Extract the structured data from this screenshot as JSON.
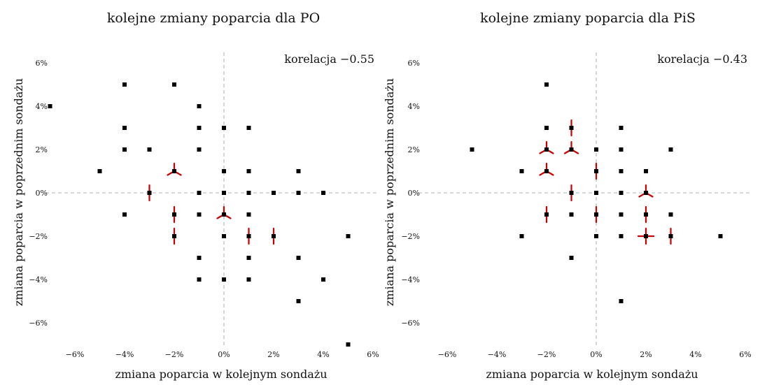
{
  "chart_data": [
    {
      "type": "scatter",
      "title": "kolejne zmiany poparcia dla PO",
      "xlabel": "zmiana poparcia w kolejnym sondażu",
      "ylabel": "zmiana poparcia w poprzednim sondażu",
      "annotation": "korelacja −0.55",
      "xlim": [
        -7,
        6
      ],
      "ylim": [
        -7,
        6
      ],
      "xticks": [
        "−6%",
        "−4%",
        "−2%",
        "0%",
        "2%",
        "4%",
        "6%"
      ],
      "yticks": [
        "−6%",
        "−4%",
        "−2%",
        "0%",
        "2%",
        "4%",
        "6%"
      ],
      "tick_values": [
        -6,
        -4,
        -2,
        0,
        2,
        4,
        6
      ],
      "reference_lines": {
        "x": 0,
        "y": 0
      },
      "marker_color": "#000000",
      "sunflower_color": "#cc0000",
      "points": [
        {
          "x": -7,
          "y": 4,
          "n": 1
        },
        {
          "x": -5,
          "y": 1,
          "n": 1
        },
        {
          "x": -4,
          "y": 5,
          "n": 1
        },
        {
          "x": -4,
          "y": 3,
          "n": 1
        },
        {
          "x": -4,
          "y": 2,
          "n": 1
        },
        {
          "x": -4,
          "y": -1,
          "n": 1
        },
        {
          "x": -3,
          "y": 2,
          "n": 1
        },
        {
          "x": -3,
          "y": 0,
          "n": 2
        },
        {
          "x": -2,
          "y": 5,
          "n": 1
        },
        {
          "x": -2,
          "y": 1,
          "n": 3
        },
        {
          "x": -2,
          "y": -1,
          "n": 2
        },
        {
          "x": -2,
          "y": -2,
          "n": 2
        },
        {
          "x": -1,
          "y": 4,
          "n": 1
        },
        {
          "x": -1,
          "y": 3,
          "n": 1
        },
        {
          "x": -1,
          "y": 2,
          "n": 1
        },
        {
          "x": -1,
          "y": 0,
          "n": 1
        },
        {
          "x": -1,
          "y": -1,
          "n": 1
        },
        {
          "x": -1,
          "y": -3,
          "n": 1
        },
        {
          "x": -1,
          "y": -4,
          "n": 1
        },
        {
          "x": 0,
          "y": 3,
          "n": 1
        },
        {
          "x": 0,
          "y": 1,
          "n": 1
        },
        {
          "x": 0,
          "y": 0,
          "n": 1
        },
        {
          "x": 0,
          "y": -1,
          "n": 3
        },
        {
          "x": 0,
          "y": -2,
          "n": 1
        },
        {
          "x": 0,
          "y": -4,
          "n": 1
        },
        {
          "x": 1,
          "y": 3,
          "n": 1
        },
        {
          "x": 1,
          "y": 1,
          "n": 1
        },
        {
          "x": 1,
          "y": 0,
          "n": 1
        },
        {
          "x": 1,
          "y": -1,
          "n": 1
        },
        {
          "x": 1,
          "y": -2,
          "n": 2
        },
        {
          "x": 1,
          "y": -3,
          "n": 1
        },
        {
          "x": 1,
          "y": -4,
          "n": 1
        },
        {
          "x": 2,
          "y": 0,
          "n": 1
        },
        {
          "x": 2,
          "y": -2,
          "n": 2
        },
        {
          "x": 3,
          "y": 1,
          "n": 1
        },
        {
          "x": 3,
          "y": 0,
          "n": 1
        },
        {
          "x": 3,
          "y": -3,
          "n": 1
        },
        {
          "x": 3,
          "y": -5,
          "n": 1
        },
        {
          "x": 4,
          "y": 0,
          "n": 1
        },
        {
          "x": 4,
          "y": -4,
          "n": 1
        },
        {
          "x": 5,
          "y": -2,
          "n": 1
        },
        {
          "x": 5,
          "y": -7,
          "n": 1
        }
      ]
    },
    {
      "type": "scatter",
      "title": "kolejne zmiany poparcia dla PiS",
      "xlabel": "zmiana poparcia w kolejnym sondażu",
      "ylabel": "zmiana poparcia w poprzednim sondażu",
      "annotation": "korelacja −0.43",
      "xlim": [
        -7,
        6
      ],
      "ylim": [
        -7,
        6
      ],
      "xticks": [
        "−6%",
        "−4%",
        "−2%",
        "0%",
        "2%",
        "4%",
        "6%"
      ],
      "yticks": [
        "−6%",
        "−4%",
        "−2%",
        "0%",
        "2%",
        "4%",
        "6%"
      ],
      "tick_values": [
        -6,
        -4,
        -2,
        0,
        2,
        4,
        6
      ],
      "reference_lines": {
        "x": 0,
        "y": 0
      },
      "marker_color": "#000000",
      "sunflower_color": "#cc0000",
      "points": [
        {
          "x": -5,
          "y": 2,
          "n": 1
        },
        {
          "x": -3,
          "y": 1,
          "n": 1
        },
        {
          "x": -3,
          "y": -2,
          "n": 1
        },
        {
          "x": -2,
          "y": 5,
          "n": 1
        },
        {
          "x": -2,
          "y": 3,
          "n": 1
        },
        {
          "x": -2,
          "y": 2,
          "n": 3
        },
        {
          "x": -2,
          "y": 1,
          "n": 3
        },
        {
          "x": -2,
          "y": -1,
          "n": 2
        },
        {
          "x": -1,
          "y": 3,
          "n": 2
        },
        {
          "x": -1,
          "y": 2,
          "n": 3
        },
        {
          "x": -1,
          "y": 0,
          "n": 2
        },
        {
          "x": -1,
          "y": -1,
          "n": 1
        },
        {
          "x": -1,
          "y": -3,
          "n": 1
        },
        {
          "x": 0,
          "y": 2,
          "n": 1
        },
        {
          "x": 0,
          "y": 1,
          "n": 2
        },
        {
          "x": 0,
          "y": 0,
          "n": 1
        },
        {
          "x": 0,
          "y": -1,
          "n": 2
        },
        {
          "x": 0,
          "y": -2,
          "n": 1
        },
        {
          "x": 1,
          "y": 3,
          "n": 1
        },
        {
          "x": 1,
          "y": 2,
          "n": 1
        },
        {
          "x": 1,
          "y": 1,
          "n": 1
        },
        {
          "x": 1,
          "y": 0,
          "n": 1
        },
        {
          "x": 1,
          "y": -1,
          "n": 1
        },
        {
          "x": 1,
          "y": -2,
          "n": 1
        },
        {
          "x": 1,
          "y": -5,
          "n": 1
        },
        {
          "x": 2,
          "y": 1,
          "n": 1
        },
        {
          "x": 2,
          "y": 0,
          "n": 3
        },
        {
          "x": 2,
          "y": -1,
          "n": 2
        },
        {
          "x": 2,
          "y": -2,
          "n": 4
        },
        {
          "x": 3,
          "y": 2,
          "n": 1
        },
        {
          "x": 3,
          "y": -1,
          "n": 1
        },
        {
          "x": 3,
          "y": -2,
          "n": 2
        },
        {
          "x": 5,
          "y": -2,
          "n": 1
        }
      ]
    }
  ]
}
